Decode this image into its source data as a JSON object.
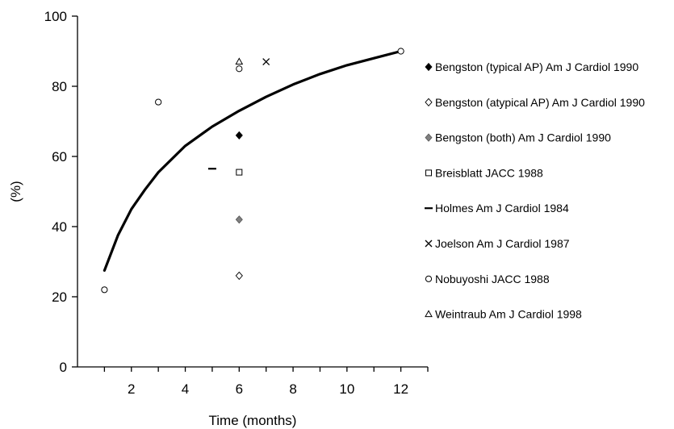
{
  "chart_data": {
    "type": "scatter",
    "title": "",
    "xlabel": "Time (months)",
    "ylabel": "(%)",
    "xlim": [
      0,
      13
    ],
    "ylim": [
      0,
      100
    ],
    "x_ticks": [
      2,
      4,
      6,
      8,
      10,
      12
    ],
    "y_ticks": [
      0,
      20,
      40,
      60,
      80,
      100
    ],
    "x_tick_labels": [
      "2",
      "4",
      "6",
      "8",
      "10",
      "12"
    ],
    "y_tick_labels": [
      "0",
      "20",
      "40",
      "60",
      "80",
      "100"
    ],
    "grid": false,
    "legend_position": "right",
    "series": [
      {
        "name": "Bengston (typical AP) Am J Cardiol 1990",
        "marker": "diamond-filled",
        "color": "#000000",
        "points": [
          {
            "x": 6,
            "y": 66
          }
        ]
      },
      {
        "name": "Bengston (atypical AP) Am J Cardiol 1990",
        "marker": "diamond-open",
        "color": "#000000",
        "points": [
          {
            "x": 6,
            "y": 26
          }
        ]
      },
      {
        "name": "Bengston (both) Am J Cardiol 1990",
        "marker": "diamond-gray",
        "color": "#808080",
        "points": [
          {
            "x": 6,
            "y": 42
          }
        ]
      },
      {
        "name": "Breisblatt JACC 1988",
        "marker": "square-open",
        "color": "#000000",
        "points": [
          {
            "x": 6,
            "y": 55.5
          }
        ]
      },
      {
        "name": "Holmes Am J Cardiol 1984",
        "marker": "dash",
        "color": "#000000",
        "points": [
          {
            "x": 5,
            "y": 56.5
          }
        ]
      },
      {
        "name": "Joelson Am J Cardiol 1987",
        "marker": "cross",
        "color": "#000000",
        "points": [
          {
            "x": 7,
            "y": 87
          }
        ]
      },
      {
        "name": "Nobuyoshi JACC 1988",
        "marker": "circle-open",
        "color": "#000000",
        "points": [
          {
            "x": 1,
            "y": 22
          },
          {
            "x": 3,
            "y": 75.5
          },
          {
            "x": 6,
            "y": 85
          },
          {
            "x": 12,
            "y": 90
          }
        ]
      },
      {
        "name": "Weintraub Am J Cardiol 1998",
        "marker": "triangle-open",
        "color": "#000000",
        "points": [
          {
            "x": 6,
            "y": 87
          }
        ]
      }
    ],
    "trend_line": {
      "type": "logarithmic",
      "color": "#000000",
      "points": [
        {
          "x": 1,
          "y": 27.5
        },
        {
          "x": 1.5,
          "y": 37.5
        },
        {
          "x": 2,
          "y": 45
        },
        {
          "x": 2.5,
          "y": 50.5
        },
        {
          "x": 3,
          "y": 55.5
        },
        {
          "x": 4,
          "y": 63
        },
        {
          "x": 5,
          "y": 68.5
        },
        {
          "x": 6,
          "y": 73
        },
        {
          "x": 7,
          "y": 77
        },
        {
          "x": 8,
          "y": 80.5
        },
        {
          "x": 9,
          "y": 83.5
        },
        {
          "x": 10,
          "y": 86
        },
        {
          "x": 11,
          "y": 88
        },
        {
          "x": 12,
          "y": 90
        }
      ]
    }
  }
}
